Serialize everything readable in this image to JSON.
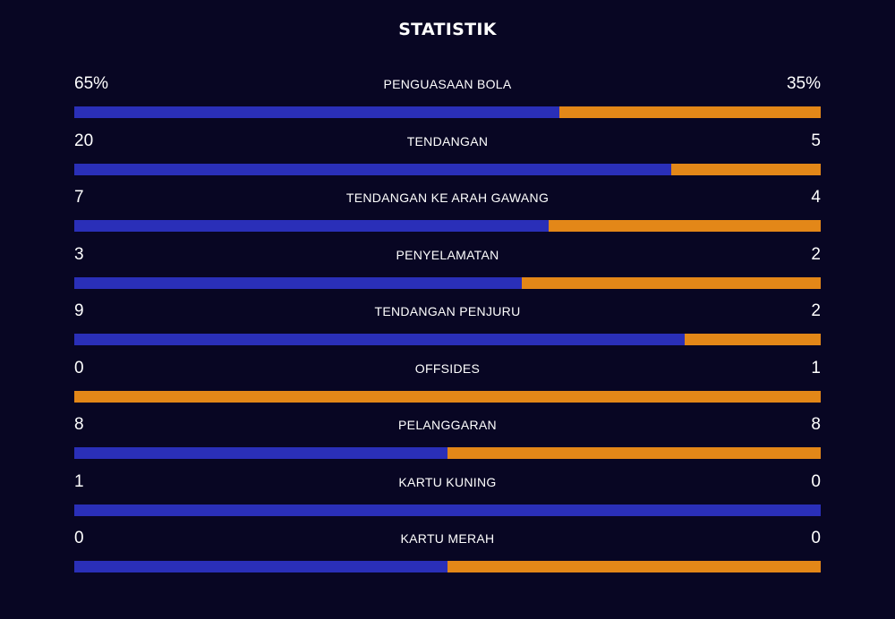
{
  "title": "STATISTIK",
  "colors": {
    "background": "#080623",
    "home": "#2a2fb8",
    "away": "#e38718"
  },
  "stats": [
    {
      "label": "PENGUASAAN BOLA",
      "home": "65%",
      "away": "35%",
      "home_share": 0.65
    },
    {
      "label": "TENDANGAN",
      "home": "20",
      "away": "5",
      "home_share": 0.8
    },
    {
      "label": "TENDANGAN KE ARAH GAWANG",
      "home": "7",
      "away": "4",
      "home_share": 0.636
    },
    {
      "label": "PENYELAMATAN",
      "home": "3",
      "away": "2",
      "home_share": 0.6
    },
    {
      "label": "TENDANGAN PENJURU",
      "home": "9",
      "away": "2",
      "home_share": 0.818
    },
    {
      "label": "OFFSIDES",
      "home": "0",
      "away": "1",
      "home_share": 0.0
    },
    {
      "label": "PELANGGARAN",
      "home": "8",
      "away": "8",
      "home_share": 0.5
    },
    {
      "label": "KARTU KUNING",
      "home": "1",
      "away": "0",
      "home_share": 1.0
    },
    {
      "label": "KARTU MERAH",
      "home": "0",
      "away": "0",
      "home_share": 0.5
    }
  ]
}
